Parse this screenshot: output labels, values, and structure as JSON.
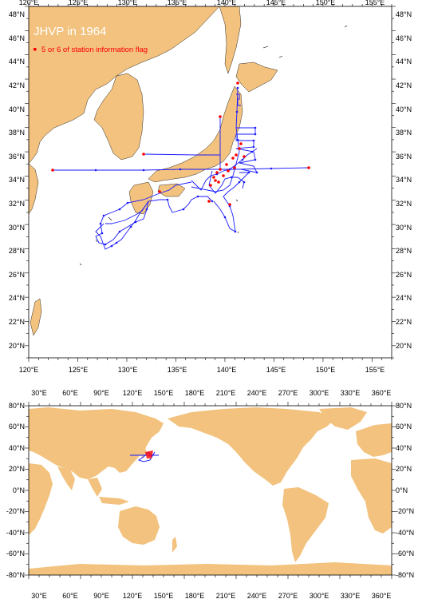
{
  "top_map": {
    "title": "JHVP in 1964",
    "legend_label": "5 or 6 of station information flag",
    "lon_ticks": [
      "120°E",
      "125°E",
      "130°E",
      "135°E",
      "140°E",
      "145°E",
      "150°E",
      "155°E"
    ],
    "lat_ticks": [
      "48°N",
      "46°N",
      "44°N",
      "42°N",
      "40°N",
      "38°N",
      "36°N",
      "34°N",
      "32°N",
      "30°N",
      "28°N",
      "26°N",
      "24°N",
      "22°N",
      "20°N"
    ],
    "lon_range": [
      120,
      157
    ],
    "lat_range": [
      19,
      48
    ]
  },
  "bottom_map": {
    "lon_ticks": [
      "30°E",
      "60°E",
      "90°E",
      "120°E",
      "150°E",
      "180°E",
      "210°E",
      "240°E",
      "270°E",
      "300°E",
      "330°E",
      "360°E"
    ],
    "lat_ticks": [
      "80°N",
      "60°N",
      "40°N",
      "20°N",
      "0°N",
      "-20°N",
      "-40°N",
      "-60°N",
      "-80°N"
    ],
    "lon_range": [
      20,
      370
    ],
    "lat_range": [
      -80,
      80
    ]
  },
  "colors": {
    "land": "#f2c27e",
    "track": "#1a1aff",
    "flag": "#ff0000",
    "ocean": "#ffffff"
  }
}
